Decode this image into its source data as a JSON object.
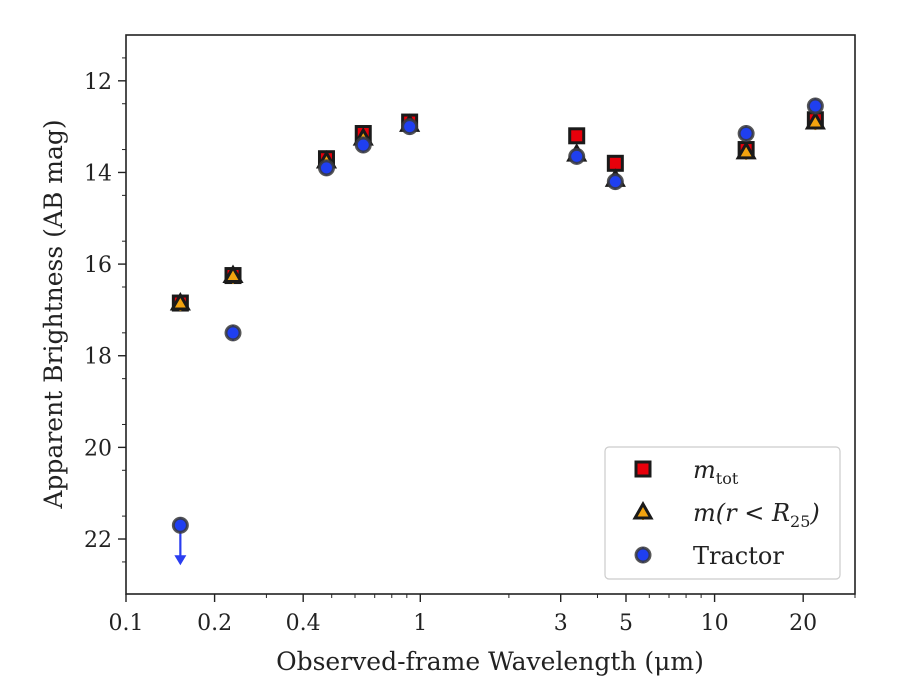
{
  "chart_data": {
    "type": "scatter",
    "title": "",
    "xlabel": "Observed-frame Wavelength (μm)",
    "ylabel": "Apparent Brightness (AB mag)",
    "xscale": "log",
    "xlim": [
      0.1,
      30
    ],
    "ylim": [
      23.2,
      11.0
    ],
    "y_inverted": true,
    "xticks": [
      {
        "value": 0.1,
        "label": "0.1"
      },
      {
        "value": 0.2,
        "label": "0.2"
      },
      {
        "value": 0.4,
        "label": "0.4"
      },
      {
        "value": 1,
        "label": "1"
      },
      {
        "value": 3,
        "label": "3"
      },
      {
        "value": 5,
        "label": "5"
      },
      {
        "value": 10,
        "label": "10"
      },
      {
        "value": 20,
        "label": "20"
      }
    ],
    "yticks": [
      {
        "value": 12,
        "label": "12"
      },
      {
        "value": 14,
        "label": "14"
      },
      {
        "value": 16,
        "label": "16"
      },
      {
        "value": 18,
        "label": "18"
      },
      {
        "value": 20,
        "label": "20"
      },
      {
        "value": 22,
        "label": "22"
      }
    ],
    "grid": false,
    "legend_position": "bottom-right",
    "series": [
      {
        "legend_main": "m",
        "legend_sub": "tot",
        "marker": "square",
        "face_color": "#e8000b",
        "edge_color": "#1a1a1a",
        "errbar_color": "#e8000b",
        "points": [
          {
            "x": 0.153,
            "y": 16.85
          },
          {
            "x": 0.231,
            "y": 16.25
          },
          {
            "x": 0.48,
            "y": 13.7
          },
          {
            "x": 0.64,
            "y": 13.15
          },
          {
            "x": 0.92,
            "y": 12.9
          },
          {
            "x": 3.4,
            "y": 13.2
          },
          {
            "x": 4.6,
            "y": 13.8
          },
          {
            "x": 12.8,
            "y": 13.5
          },
          {
            "x": 22.0,
            "y": 12.85
          }
        ]
      },
      {
        "legend_main": "m(r < R",
        "legend_sub": "25",
        "legend_tail": ")",
        "marker": "triangle",
        "face_color": "#f2a30f",
        "edge_color": "#1a1a1a",
        "errbar_color": "#f2a30f",
        "points": [
          {
            "x": 0.153,
            "y": 16.85
          },
          {
            "x": 0.231,
            "y": 16.25
          },
          {
            "x": 0.48,
            "y": 13.75
          },
          {
            "x": 0.64,
            "y": 13.25
          },
          {
            "x": 0.92,
            "y": 12.95
          },
          {
            "x": 3.4,
            "y": 13.6
          },
          {
            "x": 4.6,
            "y": 14.15
          },
          {
            "x": 12.8,
            "y": 13.55
          },
          {
            "x": 22.0,
            "y": 12.9
          }
        ]
      },
      {
        "legend_main": "Tractor",
        "marker": "circle",
        "face_color": "#1f3ff0",
        "edge_color": "#3a3a3a",
        "errbar_color": "#2a3df0",
        "points": [
          {
            "x": 0.153,
            "y": 21.7,
            "upper_limit": true
          },
          {
            "x": 0.231,
            "y": 17.5
          },
          {
            "x": 0.48,
            "y": 13.9
          },
          {
            "x": 0.64,
            "y": 13.4
          },
          {
            "x": 0.92,
            "y": 13.0
          },
          {
            "x": 3.4,
            "y": 13.65
          },
          {
            "x": 4.6,
            "y": 14.2
          },
          {
            "x": 12.8,
            "y": 13.15
          },
          {
            "x": 22.0,
            "y": 12.55
          }
        ]
      }
    ]
  }
}
